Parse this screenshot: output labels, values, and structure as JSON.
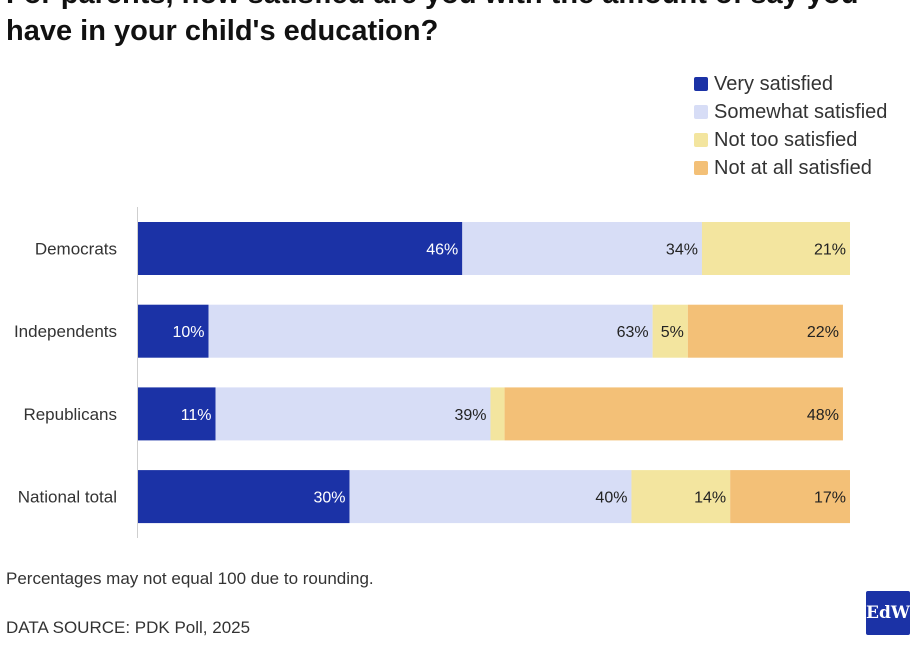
{
  "chart_data": {
    "type": "bar",
    "orientation": "horizontal",
    "stacked": true,
    "title": "For parents, how satisfied are you with the amount of say you have in your child's education?",
    "categories": [
      "Democrats",
      "Independents",
      "Republicans",
      "National total"
    ],
    "series": [
      {
        "name": "Very satisfied",
        "color": "#1b32a6",
        "values": [
          46,
          10,
          11,
          30
        ],
        "labels": [
          "46%",
          "10%",
          "11%",
          "30%"
        ]
      },
      {
        "name": "Somewhat satisfied",
        "color": "#d7ddf6",
        "values": [
          34,
          63,
          39,
          40
        ],
        "labels": [
          "34%",
          "63%",
          "39%",
          "40%"
        ]
      },
      {
        "name": "Not too satisfied",
        "color": "#f3e59f",
        "values": [
          21,
          5,
          2,
          14
        ],
        "labels": [
          "21%",
          "5%",
          "",
          "14%"
        ]
      },
      {
        "name": "Not at all satisfied",
        "color": "#f3c077",
        "values": [
          0,
          22,
          48,
          17
        ],
        "labels": [
          "",
          "22%",
          "48%",
          "17%"
        ]
      }
    ],
    "xlim": [
      0,
      101
    ],
    "legend_position": "top-right"
  },
  "footer": {
    "note": "Percentages may not equal 100 due to rounding.",
    "source": "DATA SOURCE: PDK Poll, 2025",
    "logo": "EdW"
  }
}
